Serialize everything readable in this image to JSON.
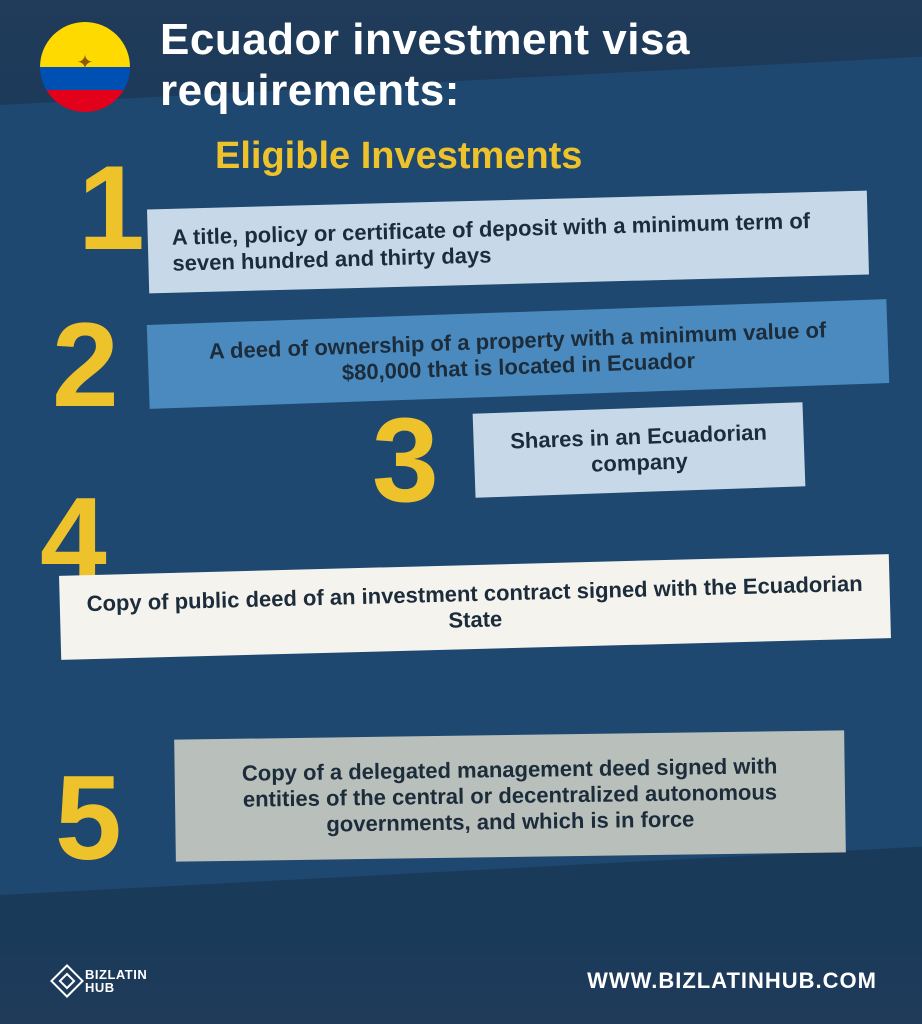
{
  "colors": {
    "background": "#1a3a5a",
    "panel": "#1e4870",
    "accent": "#eec22a",
    "title_text": "#ffffff",
    "card_text": "#1c2c3a"
  },
  "flag": {
    "yellow": "#ffda00",
    "blue": "#0050b4",
    "red": "#e3001b"
  },
  "title": "Ecuador investment visa requirements:",
  "subtitle": "Eligible Investments",
  "items": [
    {
      "num": "1",
      "text": "A title, policy or certificate of deposit with a minimum term of seven hundred and thirty days",
      "bg": "#c7d9e8"
    },
    {
      "num": "2",
      "text": "A deed of ownership of a property with a minimum value of $80,000 that is located in Ecuador",
      "bg": "#4a8abf"
    },
    {
      "num": "3",
      "text": "Shares in an Ecuadorian company",
      "bg": "#c7d9e8"
    },
    {
      "num": "4",
      "text": "Copy of public deed of an investment contract signed with the Ecuadorian State",
      "bg": "#f5f3ee"
    },
    {
      "num": "5",
      "text": "Copy of a delegated management deed signed with entities of the central or decentralized autonomous governments, and which is in force",
      "bg": "#b9c0bb"
    }
  ],
  "footer": {
    "brand_top": "BIZLATIN",
    "brand_bottom": "HUB",
    "url": "WWW.BIZLATINHUB.COM"
  }
}
